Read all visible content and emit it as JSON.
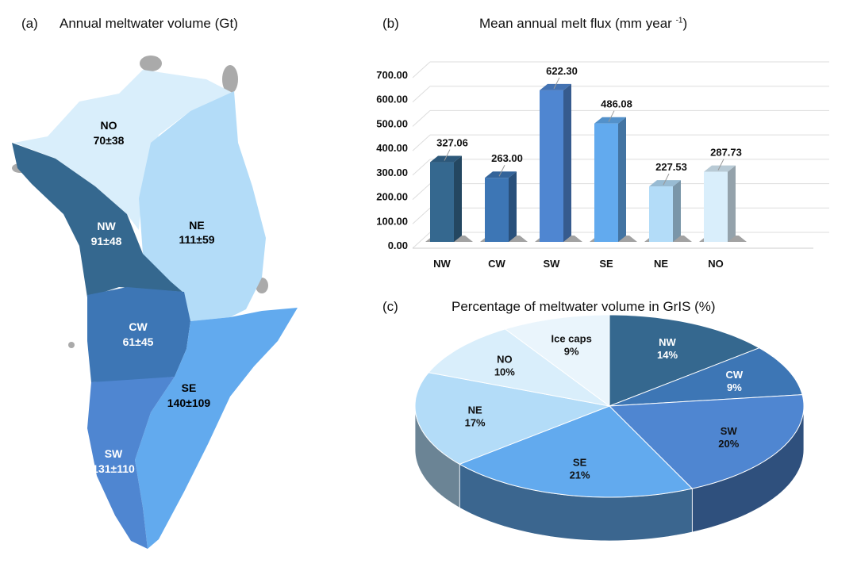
{
  "panel_a": {
    "tag": "(a)",
    "title": "Annual meltwater volume (Gt)",
    "regions": [
      {
        "name": "NO",
        "value": "70±38",
        "color": "#d9eefb"
      },
      {
        "name": "NE",
        "value": "111±59",
        "color": "#b3dcf8"
      },
      {
        "name": "NW",
        "value": "91±48",
        "color": "#35688f"
      },
      {
        "name": "CW",
        "value": "61±45",
        "color": "#3d76b5"
      },
      {
        "name": "SE",
        "value": "140±109",
        "color": "#62aaee"
      },
      {
        "name": "SW",
        "value": "131±110",
        "color": "#4f86d1"
      }
    ]
  },
  "panel_b": {
    "tag": "(b)",
    "title": "Mean annual melt flux (mm year",
    "title_sup": "-1",
    "title_end": ")"
  },
  "panel_c": {
    "tag": "(c)",
    "title": "Percentage of meltwater volume in GrIS (%)"
  },
  "chart_data": [
    {
      "type": "bar",
      "title": "Mean annual melt flux (mm year -1)",
      "categories": [
        "NW",
        "CW",
        "SW",
        "SE",
        "NE",
        "NO"
      ],
      "values": [
        327.06,
        263.0,
        622.3,
        486.08,
        227.53,
        287.73
      ],
      "value_labels": [
        "327.06",
        "263.00",
        "622.30",
        "486.08",
        "227.53",
        "287.73"
      ],
      "colors": [
        "#35688f",
        "#3d76b5",
        "#4f86d1",
        "#62aaee",
        "#b3dcf8",
        "#d9eefb"
      ],
      "yticks": [
        "0.00",
        "100.00",
        "200.00",
        "300.00",
        "400.00",
        "500.00",
        "600.00",
        "700.00"
      ],
      "ylim": [
        0,
        700
      ],
      "grid": true
    },
    {
      "type": "pie",
      "title": "Percentage of meltwater volume in GrIS (%)",
      "labels": [
        "NW",
        "CW",
        "SW",
        "SE",
        "NE",
        "NO",
        "Ice caps"
      ],
      "values": [
        14,
        9,
        20,
        21,
        17,
        10,
        9
      ],
      "value_labels": [
        "14%",
        "9%",
        "20%",
        "21%",
        "17%",
        "10%",
        "9%"
      ],
      "colors": [
        "#35688f",
        "#3d76b5",
        "#4f86d1",
        "#62aaee",
        "#b3dcf8",
        "#d9eefb",
        "#eaf5fc"
      ]
    }
  ]
}
